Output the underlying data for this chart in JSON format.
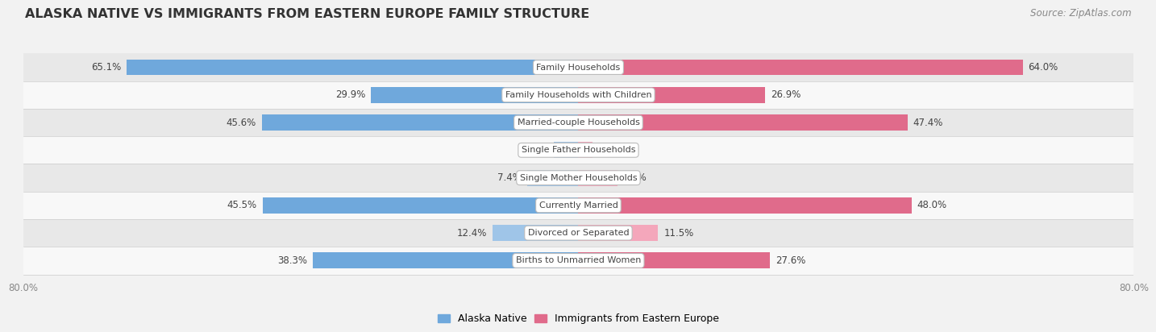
{
  "title": "ALASKA NATIVE VS IMMIGRANTS FROM EASTERN EUROPE FAMILY STRUCTURE",
  "source": "Source: ZipAtlas.com",
  "categories": [
    "Family Households",
    "Family Households with Children",
    "Married-couple Households",
    "Single Father Households",
    "Single Mother Households",
    "Currently Married",
    "Divorced or Separated",
    "Births to Unmarried Women"
  ],
  "alaska_values": [
    65.1,
    29.9,
    45.6,
    3.5,
    7.4,
    45.5,
    12.4,
    38.3
  ],
  "immigrant_values": [
    64.0,
    26.9,
    47.4,
    2.0,
    5.6,
    48.0,
    11.5,
    27.6
  ],
  "alaska_color_strong": "#6fa8dc",
  "alaska_color_light": "#9fc5e8",
  "immigrant_color_strong": "#e06b8b",
  "immigrant_color_light": "#f4a7bb",
  "axis_max": 80.0,
  "axis_label_left": "80.0%",
  "axis_label_right": "80.0%",
  "legend_alaska": "Alaska Native",
  "legend_immigrant": "Immigrants from Eastern Europe",
  "bg_color": "#f2f2f2",
  "row_bg_colors": [
    "#e8e8e8",
    "#f8f8f8"
  ],
  "row_border_color": "#cccccc",
  "label_color_dark": "#444444",
  "label_color_white": "#ffffff",
  "title_fontsize": 11.5,
  "source_fontsize": 8.5,
  "value_fontsize": 8.5,
  "category_fontsize": 8,
  "legend_fontsize": 9,
  "bar_height": 0.58,
  "threshold_white_label": 20.0
}
